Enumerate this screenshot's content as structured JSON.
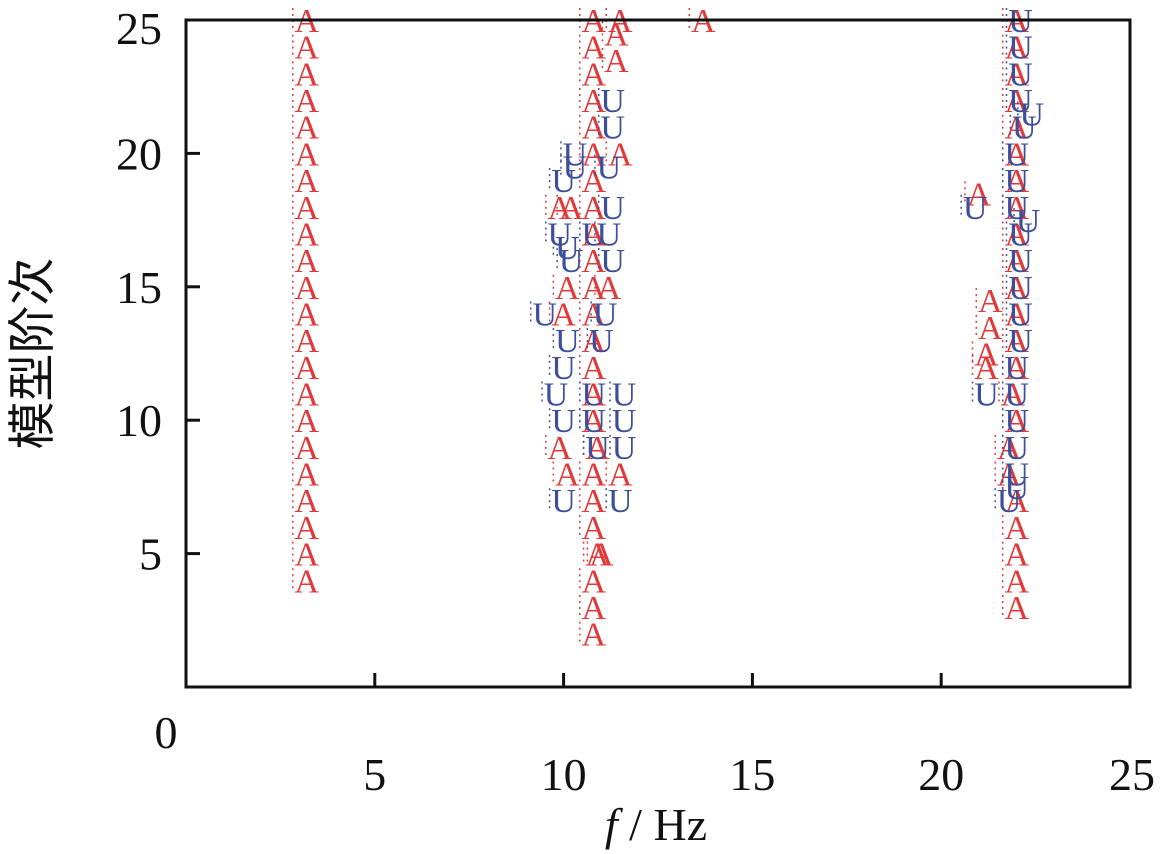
{
  "chart_data": {
    "type": "scatter",
    "title": "",
    "xlabel_italic": "f",
    "xlabel_rest": " / Hz",
    "ylabel": "模型阶次",
    "xlim": [
      0,
      25
    ],
    "ylim": [
      0,
      25
    ],
    "xticks": [
      "0",
      "5",
      "10",
      "15",
      "20",
      "25"
    ],
    "yticks": [
      "5",
      "10",
      "15",
      "20",
      "25"
    ],
    "grid": false,
    "legend": "none",
    "colors": {
      "A": "#e03a3a",
      "U": "#3d4f9b",
      "axis": "#111111"
    },
    "marker_labels": {
      "A": "A",
      "U": "U"
    },
    "series": [
      {
        "marker": "A",
        "points": [
          [
            3.2,
            4
          ],
          [
            3.2,
            5
          ],
          [
            3.2,
            6
          ],
          [
            3.2,
            7
          ],
          [
            3.2,
            8
          ],
          [
            3.2,
            9
          ],
          [
            3.2,
            10
          ],
          [
            3.2,
            11
          ],
          [
            3.2,
            12
          ],
          [
            3.2,
            13
          ],
          [
            3.2,
            14
          ],
          [
            3.2,
            15
          ],
          [
            3.2,
            16
          ],
          [
            3.2,
            17
          ],
          [
            3.2,
            18
          ],
          [
            3.2,
            19
          ],
          [
            3.2,
            20
          ],
          [
            3.2,
            21
          ],
          [
            3.2,
            22
          ],
          [
            3.2,
            23
          ],
          [
            3.2,
            24
          ],
          [
            3.2,
            25
          ],
          [
            10.8,
            2
          ],
          [
            10.8,
            3
          ],
          [
            10.8,
            4
          ],
          [
            10.9,
            5
          ],
          [
            11.0,
            5
          ],
          [
            10.8,
            6
          ],
          [
            10.8,
            7
          ],
          [
            10.8,
            8
          ],
          [
            10.9,
            9
          ],
          [
            10.8,
            10
          ],
          [
            10.8,
            11
          ],
          [
            10.8,
            12
          ],
          [
            10.8,
            13
          ],
          [
            10.8,
            14
          ],
          [
            10.8,
            15
          ],
          [
            10.8,
            16
          ],
          [
            10.8,
            17
          ],
          [
            10.8,
            18
          ],
          [
            10.8,
            19
          ],
          [
            10.8,
            20
          ],
          [
            10.8,
            21
          ],
          [
            10.8,
            22
          ],
          [
            10.8,
            23
          ],
          [
            10.8,
            24
          ],
          [
            10.8,
            25
          ],
          [
            11.4,
            23.5
          ],
          [
            11.4,
            24.5
          ],
          [
            11.5,
            25
          ],
          [
            11.5,
            20
          ],
          [
            11.2,
            15
          ],
          [
            11.5,
            8
          ],
          [
            9.9,
            9
          ],
          [
            10.1,
            8
          ],
          [
            9.9,
            18
          ],
          [
            10.2,
            18
          ],
          [
            10.0,
            14
          ],
          [
            10.1,
            15
          ],
          [
            13.7,
            25
          ],
          [
            22.0,
            3
          ],
          [
            22.0,
            4
          ],
          [
            22.0,
            5
          ],
          [
            22.0,
            6
          ],
          [
            22.0,
            7
          ],
          [
            21.8,
            8
          ],
          [
            21.8,
            9
          ],
          [
            22.0,
            10
          ],
          [
            21.9,
            11
          ],
          [
            22.0,
            12
          ],
          [
            22.0,
            13
          ],
          [
            22.0,
            14
          ],
          [
            22.0,
            15
          ],
          [
            22.0,
            16
          ],
          [
            22.0,
            17
          ],
          [
            22.0,
            18
          ],
          [
            22.0,
            19
          ],
          [
            22.0,
            20
          ],
          [
            22.0,
            21
          ],
          [
            22.0,
            22
          ],
          [
            22.0,
            23
          ],
          [
            22.0,
            24
          ],
          [
            22.0,
            25
          ],
          [
            21.0,
            18.5
          ],
          [
            21.3,
            14.5
          ],
          [
            21.3,
            13.5
          ],
          [
            21.2,
            12.5
          ],
          [
            21.2,
            12
          ]
        ]
      },
      {
        "marker": "U",
        "points": [
          [
            9.5,
            14
          ],
          [
            10.0,
            19
          ],
          [
            10.3,
            19.5
          ],
          [
            10.3,
            20
          ],
          [
            9.9,
            17
          ],
          [
            10.1,
            16.5
          ],
          [
            10.2,
            16
          ],
          [
            9.8,
            11
          ],
          [
            10.0,
            10
          ],
          [
            10.0,
            7
          ],
          [
            10.0,
            12
          ],
          [
            10.1,
            13
          ],
          [
            10.8,
            10
          ],
          [
            10.9,
            9
          ],
          [
            11.0,
            13
          ],
          [
            11.1,
            14
          ],
          [
            10.8,
            17
          ],
          [
            10.8,
            11
          ],
          [
            11.2,
            19.5
          ],
          [
            11.3,
            21
          ],
          [
            11.3,
            22
          ],
          [
            11.3,
            18
          ],
          [
            11.2,
            17
          ],
          [
            11.3,
            16
          ],
          [
            11.6,
            11
          ],
          [
            11.6,
            10
          ],
          [
            11.6,
            9
          ],
          [
            11.5,
            7
          ],
          [
            20.9,
            18
          ],
          [
            21.2,
            11
          ],
          [
            21.8,
            7
          ],
          [
            22.0,
            7.5
          ],
          [
            22.0,
            8
          ],
          [
            22.0,
            9
          ],
          [
            22.0,
            10
          ],
          [
            22.0,
            11
          ],
          [
            22.0,
            12
          ],
          [
            22.1,
            13
          ],
          [
            22.1,
            14
          ],
          [
            22.1,
            15
          ],
          [
            22.1,
            16
          ],
          [
            22.1,
            17
          ],
          [
            22.3,
            17.5
          ],
          [
            22.0,
            18
          ],
          [
            22.0,
            19
          ],
          [
            22.0,
            20
          ],
          [
            22.2,
            21
          ],
          [
            22.4,
            21.5
          ],
          [
            22.1,
            22
          ],
          [
            22.1,
            23
          ],
          [
            22.1,
            24
          ],
          [
            22.1,
            25
          ]
        ]
      }
    ]
  }
}
